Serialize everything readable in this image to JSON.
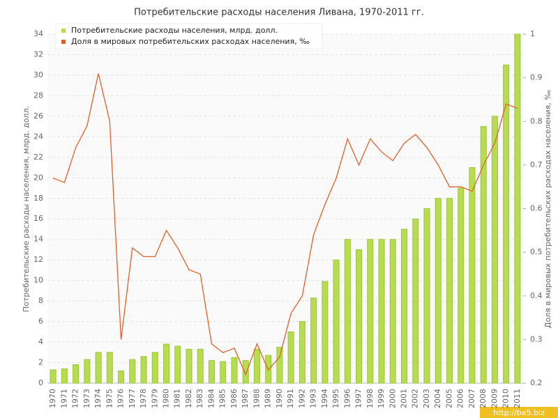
{
  "chart_data": {
    "type": "combo",
    "title": "Потребительские расходы населения Ливана, 1970-2011 гг.",
    "y_label": "Потребительские расходы населения, млрд. долл.",
    "y2_label": "Доля в мировых потребительских расходах населения, ‰",
    "watermark": "http://be5.biz",
    "categories": [
      "1970",
      "1971",
      "1972",
      "1973",
      "1974",
      "1975",
      "1976",
      "1977",
      "1978",
      "1979",
      "1980",
      "1981",
      "1982",
      "1983",
      "1984",
      "1985",
      "1986",
      "1987",
      "1988",
      "1989",
      "1990",
      "1991",
      "1992",
      "1993",
      "1994",
      "1995",
      "1996",
      "1997",
      "1998",
      "1999",
      "2000",
      "2001",
      "2002",
      "2003",
      "2004",
      "2005",
      "2006",
      "2007",
      "2008",
      "2009",
      "2010",
      "2011"
    ],
    "series": [
      {
        "name": "Потребительские расходы населения, млрд. долл.",
        "type": "bar",
        "color": "#b8dc50",
        "values": [
          1.3,
          1.4,
          1.8,
          2.3,
          3.0,
          3.0,
          1.2,
          2.3,
          2.6,
          3.0,
          3.8,
          3.6,
          3.3,
          3.3,
          2.2,
          2.1,
          2.5,
          2.2,
          3.3,
          2.7,
          3.5,
          5.0,
          6.0,
          8.3,
          9.9,
          12,
          14,
          13,
          14,
          14,
          14,
          15,
          16,
          17,
          18,
          18,
          19,
          21,
          25,
          26,
          31,
          34
        ]
      },
      {
        "name": "Доля в мировых потребительских расходах населения, ‰",
        "type": "line",
        "axis": "y2",
        "color": "#e0602c",
        "values": [
          0.67,
          0.66,
          0.74,
          0.79,
          0.91,
          0.8,
          0.3,
          0.51,
          0.49,
          0.49,
          0.55,
          0.51,
          0.46,
          0.45,
          0.29,
          0.27,
          0.28,
          0.22,
          0.29,
          0.23,
          0.26,
          0.36,
          0.4,
          0.54,
          0.61,
          0.67,
          0.76,
          0.7,
          0.76,
          0.73,
          0.71,
          0.75,
          0.77,
          0.74,
          0.7,
          0.65,
          0.65,
          0.64,
          0.7,
          0.75,
          0.84,
          0.83
        ]
      }
    ],
    "ylim": [
      0,
      34
    ],
    "yticks": [
      0,
      2,
      4,
      6,
      8,
      10,
      12,
      14,
      16,
      18,
      20,
      22,
      24,
      26,
      28,
      30,
      32,
      34
    ],
    "y2lim": [
      0.2,
      1
    ],
    "y2ticks": [
      0.2,
      0.3,
      0.4,
      0.5,
      0.6,
      0.7,
      0.8,
      0.9,
      1
    ],
    "grid": true
  }
}
